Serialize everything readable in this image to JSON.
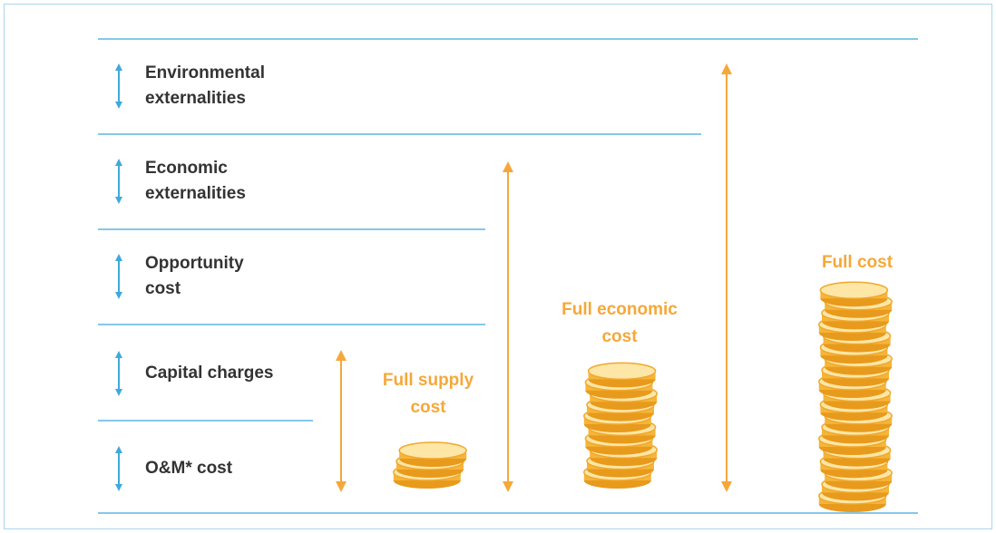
{
  "cost_components": [
    {
      "label": "Environmental externalities"
    },
    {
      "label": "Economic externalities"
    },
    {
      "label": "Opportunity cost"
    },
    {
      "label": "Capital charges"
    },
    {
      "label": "O&M* cost"
    }
  ],
  "cost_levels": [
    {
      "label": "Full supply cost"
    },
    {
      "label": "Full economic cost"
    },
    {
      "label": "Full cost"
    }
  ]
}
